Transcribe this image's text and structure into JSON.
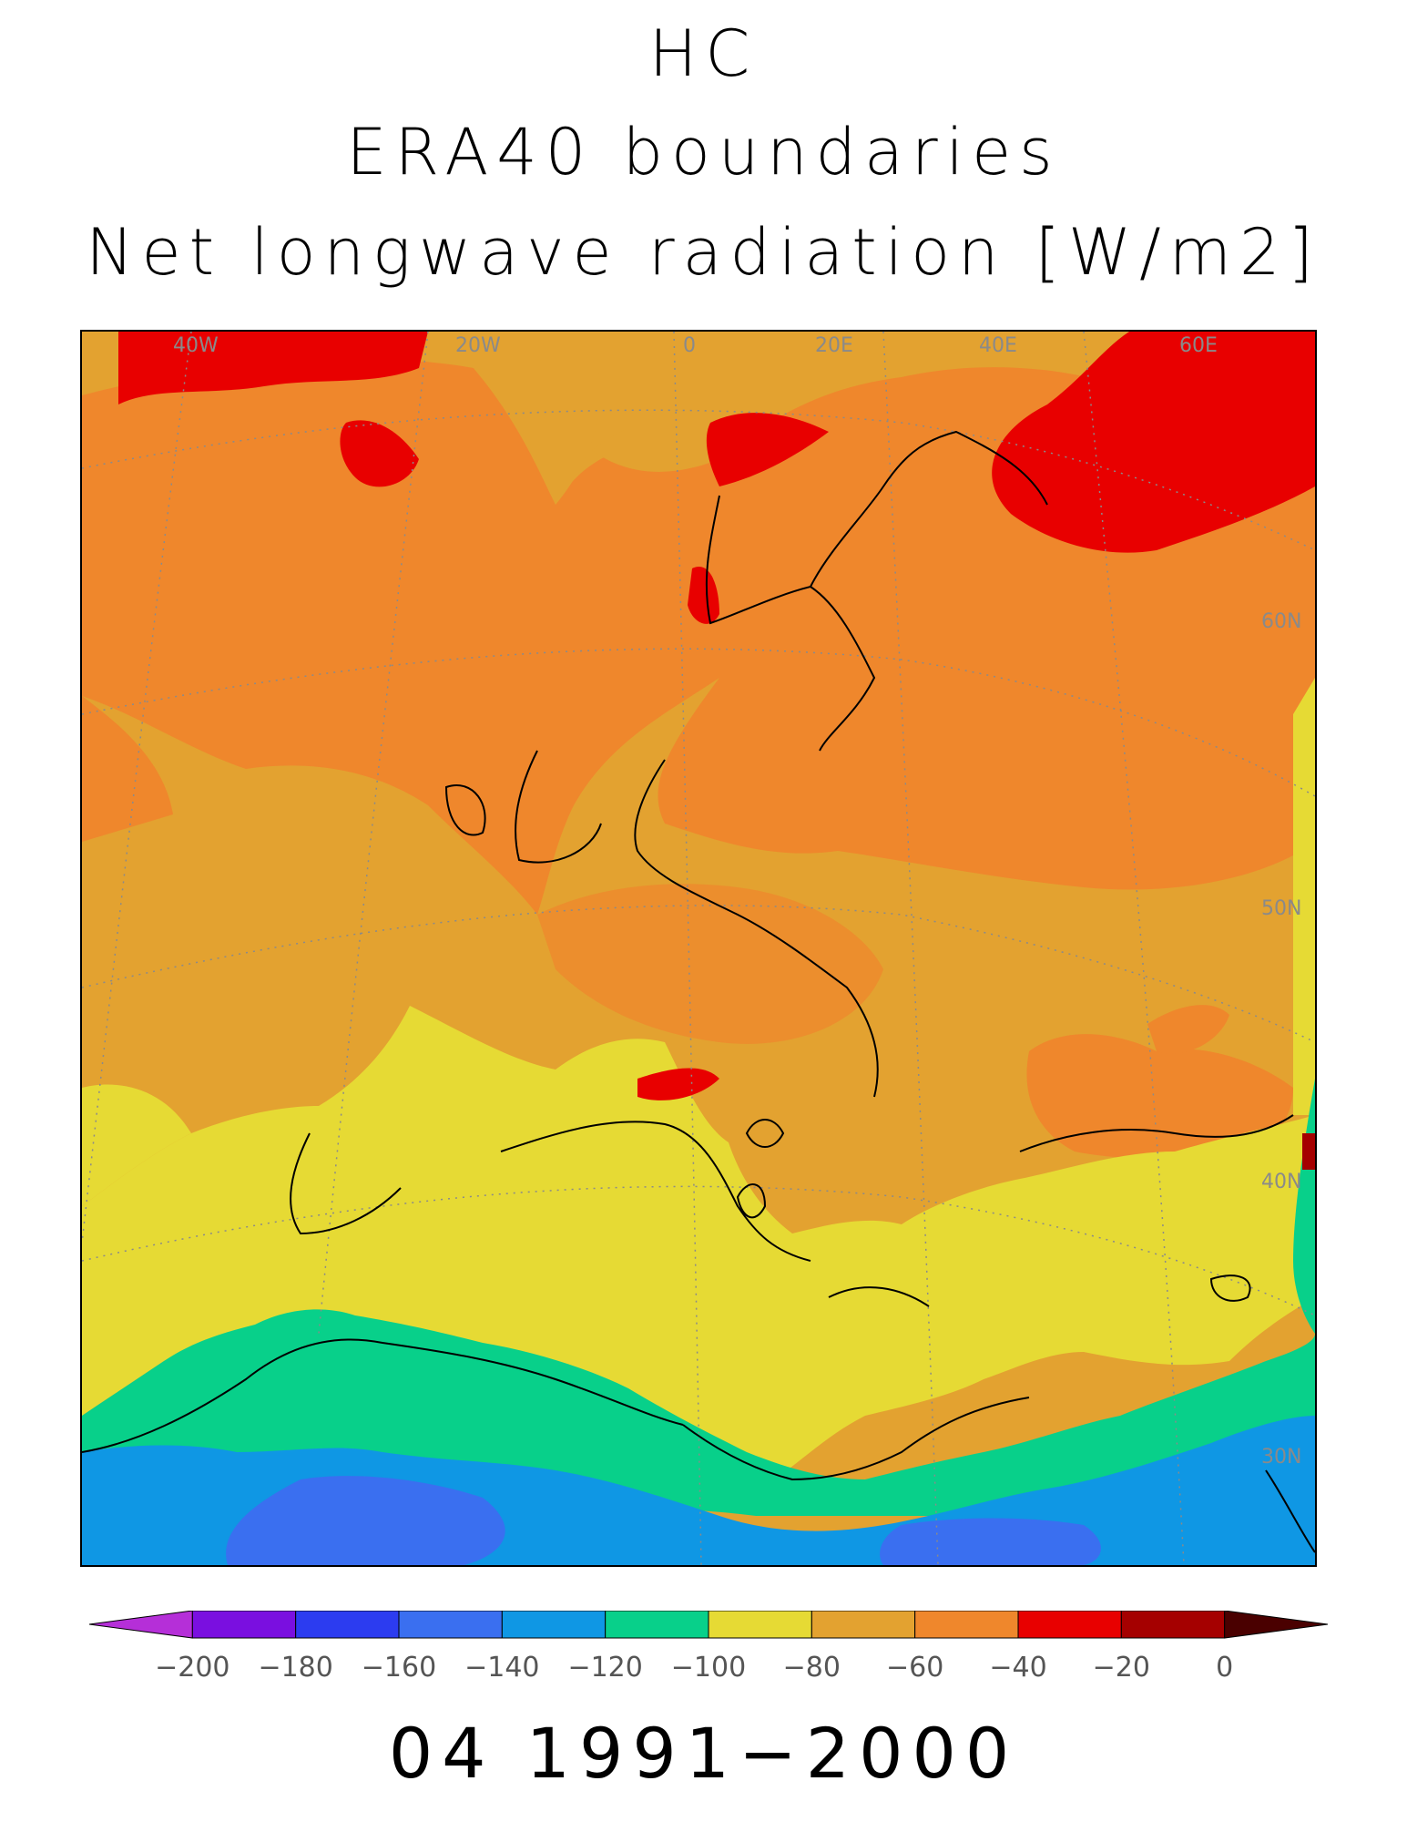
{
  "title_lines": [
    "HC",
    "ERA40 boundaries",
    "Net longwave radiation [W/m2]"
  ],
  "footer": "04 1991−2000",
  "map": {
    "lon_labels": [
      "40W",
      "20W",
      "0",
      "20E",
      "40E",
      "60E"
    ],
    "lat_labels": [
      "60N",
      "50N",
      "40N",
      "30N"
    ],
    "field": "Net longwave radiation",
    "units": "W/m2"
  },
  "colorbar": {
    "levels": [
      -200,
      -180,
      -160,
      -140,
      -120,
      -100,
      -80,
      -60,
      -40,
      -20,
      0
    ],
    "tick_labels": [
      "−200",
      "−180",
      "−160",
      "−140",
      "−120",
      "−100",
      "−80",
      "−60",
      "−40",
      "−20",
      "0"
    ],
    "colors": [
      "#b52fd8",
      "#7a0fe0",
      "#2c3cf0",
      "#3a6ff0",
      "#0f97e4",
      "#08d08a",
      "#e6da34",
      "#e3a230",
      "#ef872c",
      "#e80000",
      "#a50000",
      "#4a0000"
    ]
  }
}
